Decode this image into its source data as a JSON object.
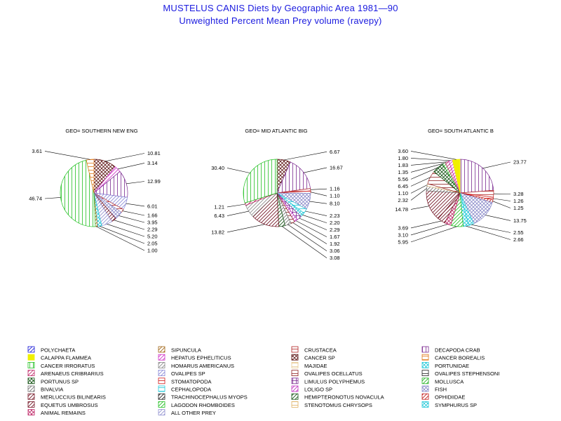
{
  "title": "MUSTELUS CANIS Diets by Geographic Area 1981—90",
  "subtitle": "Unweighted Percent Mean Prey volume (ravepy)",
  "chart_data": [
    {
      "type": "pie",
      "geo_label": "GEO= SOUTHERN NEW ENG",
      "slices": [
        {
          "category": "CANCER SP",
          "value": 10.81,
          "label": "10.81"
        },
        {
          "category": "HEPATUS EPHELITICUS",
          "value": 3.14,
          "label": "3.14"
        },
        {
          "category": "DECAPODA CRAB",
          "value": 12.99,
          "label": "12.99"
        },
        {
          "category": "OVALIPES SP",
          "value": 6.01,
          "label": "6.01"
        },
        {
          "category": "CRUSTACEA",
          "value": 1.66,
          "label": "1.66"
        },
        {
          "category": "FISH",
          "value": 3.95,
          "label": "3.95"
        },
        {
          "category": "MERLUCCIUS BILINEARIS",
          "value": 2.29,
          "label": "2.29"
        },
        {
          "category": "ALL OTHER PREY",
          "value": 5.2,
          "label": "5.20"
        },
        {
          "category": "PORTUNIDAE",
          "value": 2.05,
          "label": "2.05"
        },
        {
          "category": "SIPUNCULA",
          "value": 1.0,
          "label": "1.00"
        },
        {
          "category": "CANCER IRRORATUS",
          "value": 46.74,
          "label": "46.74"
        },
        {
          "category": "CANCER BOREALIS",
          "value": 3.61,
          "label": "3.61"
        }
      ]
    },
    {
      "type": "pie",
      "geo_label": "GEO= MID ATLANTIC BIG",
      "slices": [
        {
          "category": "CANCER SP",
          "value": 6.67,
          "label": "6.67"
        },
        {
          "category": "DECAPODA CRAB",
          "value": 16.67,
          "label": "16.67"
        },
        {
          "category": "CRUSTACEA",
          "value": 1.16,
          "label": "1.16"
        },
        {
          "category": "STOMATOPODA",
          "value": 1.1,
          "label": "1.10"
        },
        {
          "category": "FISH",
          "value": 8.1,
          "label": "8.10"
        },
        {
          "category": "CEPHALOPODA",
          "value": 2.23,
          "label": "2.23"
        },
        {
          "category": "PORTUNIDAE",
          "value": 2.2,
          "label": "2.20"
        },
        {
          "category": "LIMULUS POLYPHEMUS",
          "value": 2.29,
          "label": "2.29"
        },
        {
          "category": "LOLIGO SP",
          "value": 1.67,
          "label": "1.67"
        },
        {
          "category": "OVALIPES OCELLATUS",
          "value": 1.92,
          "label": "1.92"
        },
        {
          "category": "BIVALVIA",
          "value": 3.06,
          "label": "3.06"
        },
        {
          "category": "HEMIPTERONOTUS NOVACULA",
          "value": 3.08,
          "label": "3.08"
        },
        {
          "category": "MERLUCCIUS BILINEARIS",
          "value": 13.82,
          "label": "13.82"
        },
        {
          "category": "HOMARUS AMERICANUS",
          "value": 6.43,
          "label": "6.43"
        },
        {
          "category": "ARENAEUS CRIBRARIUS",
          "value": 1.21,
          "label": "1.21"
        },
        {
          "category": "CANCER IRRORATUS",
          "value": 30.4,
          "label": "30.40"
        }
      ]
    },
    {
      "type": "pie",
      "geo_label": "GEO= SOUTH ATLANTIC B",
      "slices": [
        {
          "category": "DECAPODA CRAB",
          "value": 23.77,
          "label": "23.77"
        },
        {
          "category": "CRUSTACEA",
          "value": 3.28,
          "label": "3.28"
        },
        {
          "category": "STOMATOPODA",
          "value": 1.26,
          "label": "1.26"
        },
        {
          "category": "OPHIDIIDAE",
          "value": 1.25,
          "label": "1.25"
        },
        {
          "category": "FISH",
          "value": 13.75,
          "label": "13.75"
        },
        {
          "category": "PORTUNIDAE",
          "value": 2.55,
          "label": "2.55"
        },
        {
          "category": "SYMPHURUS SP",
          "value": 2.66,
          "label": "2.66"
        },
        {
          "category": "LAGODON RHOMBOIDES",
          "value": 5.95,
          "label": "5.95"
        },
        {
          "category": "ANIMAL REMAINS",
          "value": 3.1,
          "label": "3.10"
        },
        {
          "category": "EQUETUS UMBROSUS",
          "value": 3.69,
          "label": "3.69"
        },
        {
          "category": "MERLUCCIUS BILINEARIS",
          "value": 14.78,
          "label": "14.78"
        },
        {
          "category": "BIVALVIA",
          "value": 2.32,
          "label": "2.32"
        },
        {
          "category": "MAJIDAE",
          "value": 1.1,
          "label": "1.10"
        },
        {
          "category": "OVALIPES OCELLATUS",
          "value": 6.45,
          "label": "6.45"
        },
        {
          "category": "PORTUNUS SP",
          "value": 5.56,
          "label": "5.56"
        },
        {
          "category": "MOLLUSCA",
          "value": 1.35,
          "label": "1.35"
        },
        {
          "category": "ARENAEUS CRIBRARIUS",
          "value": 1.83,
          "label": "1.83"
        },
        {
          "category": "HEPATUS EPHELITICUS",
          "value": 1.8,
          "label": "1.80"
        },
        {
          "category": "CALAPPA FLAMMEA",
          "value": 3.6,
          "label": "3.60"
        }
      ]
    }
  ],
  "legend": [
    {
      "label": "POLYCHAETA",
      "color": "#1c1cd8",
      "pattern": "diag"
    },
    {
      "label": "SIPUNCULA",
      "color": "#a06414",
      "pattern": "diag"
    },
    {
      "label": "CRUSTACEA",
      "color": "#b02020",
      "pattern": "horiz"
    },
    {
      "label": "DECAPODA CRAB",
      "color": "#7a2890",
      "pattern": "vert"
    },
    {
      "label": "CALAPPA FLAMMEA",
      "color": "#f0f000",
      "pattern": "solid"
    },
    {
      "label": "HEPATUS EPHELITICUS",
      "color": "#d030c8",
      "pattern": "diag"
    },
    {
      "label": "CANCER SP",
      "color": "#5a1010",
      "pattern": "cross"
    },
    {
      "label": "CANCER BOREALIS",
      "color": "#e07818",
      "pattern": "horiz"
    },
    {
      "label": "CANCER IRRORATUS",
      "color": "#20c020",
      "pattern": "vert"
    },
    {
      "label": "HOMARUS AMERICANUS",
      "color": "#888888",
      "pattern": "diag"
    },
    {
      "label": "MAJIDAE",
      "color": "#e8c890",
      "pattern": "horiz"
    },
    {
      "label": "PORTUNIDAE",
      "color": "#20c8d8",
      "pattern": "cross"
    },
    {
      "label": "ARENAEUS CRIBRARIUS",
      "color": "#c02868",
      "pattern": "diag"
    },
    {
      "label": "OVALIPES SP",
      "color": "#8888d8",
      "pattern": "diag"
    },
    {
      "label": "OVALIPES OCELLATUS",
      "color": "#902020",
      "pattern": "horiz"
    },
    {
      "label": "OVALIPES STEPHENSONI",
      "color": "#202020",
      "pattern": "horiz"
    },
    {
      "label": "PORTUNUS SP",
      "color": "#105010",
      "pattern": "cross"
    },
    {
      "label": "STOMATOPODA",
      "color": "#d01818",
      "pattern": "horiz"
    },
    {
      "label": "LIMULUS POLYPHEMUS",
      "color": "#7a2890",
      "pattern": "grid"
    },
    {
      "label": "MOLLUSCA",
      "color": "#20b020",
      "pattern": "diag"
    },
    {
      "label": "BIVALVIA",
      "color": "#707070",
      "pattern": "diag"
    },
    {
      "label": "CEPHALOPODA",
      "color": "#20c8d8",
      "pattern": "horiz"
    },
    {
      "label": "LOLIGO SP",
      "color": "#c030c0",
      "pattern": "diag"
    },
    {
      "label": "FISH",
      "color": "#8888c8",
      "pattern": "cross"
    },
    {
      "label": "MERLUCCIUS BILINEARIS",
      "color": "#701020",
      "pattern": "diag"
    },
    {
      "label": "TRACHINOCEPHALUS MYOPS",
      "color": "#202020",
      "pattern": "diag"
    },
    {
      "label": "HEMIPTERONOTUS NOVACULA",
      "color": "#105010",
      "pattern": "diag"
    },
    {
      "label": "OPHIDIIDAE",
      "color": "#c01818",
      "pattern": "diag"
    },
    {
      "label": "EQUETUS UMBROSUS",
      "color": "#701020",
      "pattern": "diag"
    },
    {
      "label": "LAGODON RHOMBOIDES",
      "color": "#20c020",
      "pattern": "diag"
    },
    {
      "label": "STENOTOMUS CHRYSOPS",
      "color": "#e0b060",
      "pattern": "horiz"
    },
    {
      "label": "SYMPHURUS SP",
      "color": "#20c8d8",
      "pattern": "cross"
    },
    {
      "label": "ANIMAL REMAINS",
      "color": "#c02868",
      "pattern": "cross"
    },
    {
      "label": "ALL OTHER PREY",
      "color": "#9090d0",
      "pattern": "diag"
    }
  ]
}
